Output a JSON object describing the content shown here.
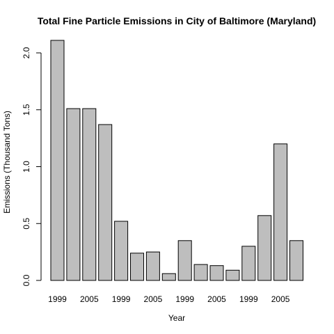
{
  "chart_data": {
    "type": "bar",
    "title": "Total Fine Particle Emissions in City of Baltimore (Maryland)",
    "xlabel": "Year",
    "ylabel": "Emissions (Thousand Tons)",
    "ylim": [
      0,
      2.2
    ],
    "y_ticks": [
      0.0,
      0.5,
      1.0,
      1.5,
      2.0
    ],
    "y_tick_labels": [
      "0.0",
      "0.5",
      "1.0",
      "1.5",
      "2.0"
    ],
    "x_tick_labels": [
      "1999",
      "2005",
      "1999",
      "2005",
      "1999",
      "2005",
      "1999",
      "2005"
    ],
    "x_tick_bar_index": [
      0,
      2,
      4,
      6,
      8,
      10,
      12,
      14
    ],
    "values": [
      2.11,
      1.51,
      1.51,
      1.37,
      0.52,
      0.24,
      0.25,
      0.06,
      0.35,
      0.14,
      0.13,
      0.09,
      0.3,
      0.57,
      1.2,
      0.35
    ],
    "grid": false,
    "legend": "none",
    "bar_color": "#bebebe"
  }
}
